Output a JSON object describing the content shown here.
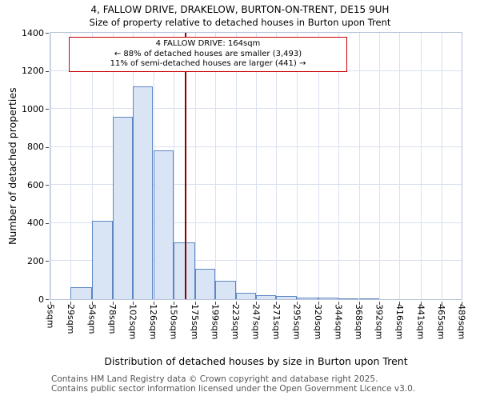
{
  "title": "4, FALLOW DRIVE, DRAKELOW, BURTON-ON-TRENT, DE15 9UH",
  "subtitle": "Size of property relative to detached houses in Burton upon Trent",
  "annotation": {
    "lines": [
      "4 FALLOW DRIVE: 164sqm",
      "← 88% of detached houses are smaller (3,493)",
      "11% of semi-detached houses are larger (441) →"
    ],
    "border_color": "#cc0000"
  },
  "footer": {
    "lines": [
      "Contains HM Land Registry data © Crown copyright and database right 2025.",
      "Contains public sector information licensed under the Open Government Licence v3.0."
    ]
  },
  "chart_data": {
    "type": "bar",
    "subtype": "histogram",
    "title": "4, FALLOW DRIVE, DRAKELOW, BURTON-ON-TRENT, DE15 9UH",
    "subtitle": "Size of property relative to detached houses in Burton upon Trent",
    "xlabel": "Distribution of detached houses by size in Burton upon Trent",
    "ylabel": "Number of detached properties",
    "x_tick_suffix": "sqm",
    "bin_edges": [
      5,
      29,
      54,
      78,
      102,
      126,
      150,
      175,
      199,
      223,
      247,
      271,
      295,
      320,
      344,
      368,
      392,
      416,
      441,
      465,
      489
    ],
    "values": [
      0,
      65,
      410,
      960,
      1120,
      780,
      300,
      160,
      95,
      35,
      20,
      15,
      10,
      8,
      5,
      2,
      0,
      0,
      0,
      0
    ],
    "yticks": [
      0,
      200,
      400,
      600,
      800,
      1000,
      1200,
      1400
    ],
    "ylim": [
      0,
      1400
    ],
    "grid": true,
    "legend": "none",
    "marker": {
      "value": 164,
      "label": "4 FALLOW DRIVE: 164sqm",
      "color": "#8b0000"
    },
    "colors": {
      "bar_fill": "#d9e4f5",
      "bar_edge": "#5b87c5",
      "grid": "#d9e0f0"
    }
  }
}
